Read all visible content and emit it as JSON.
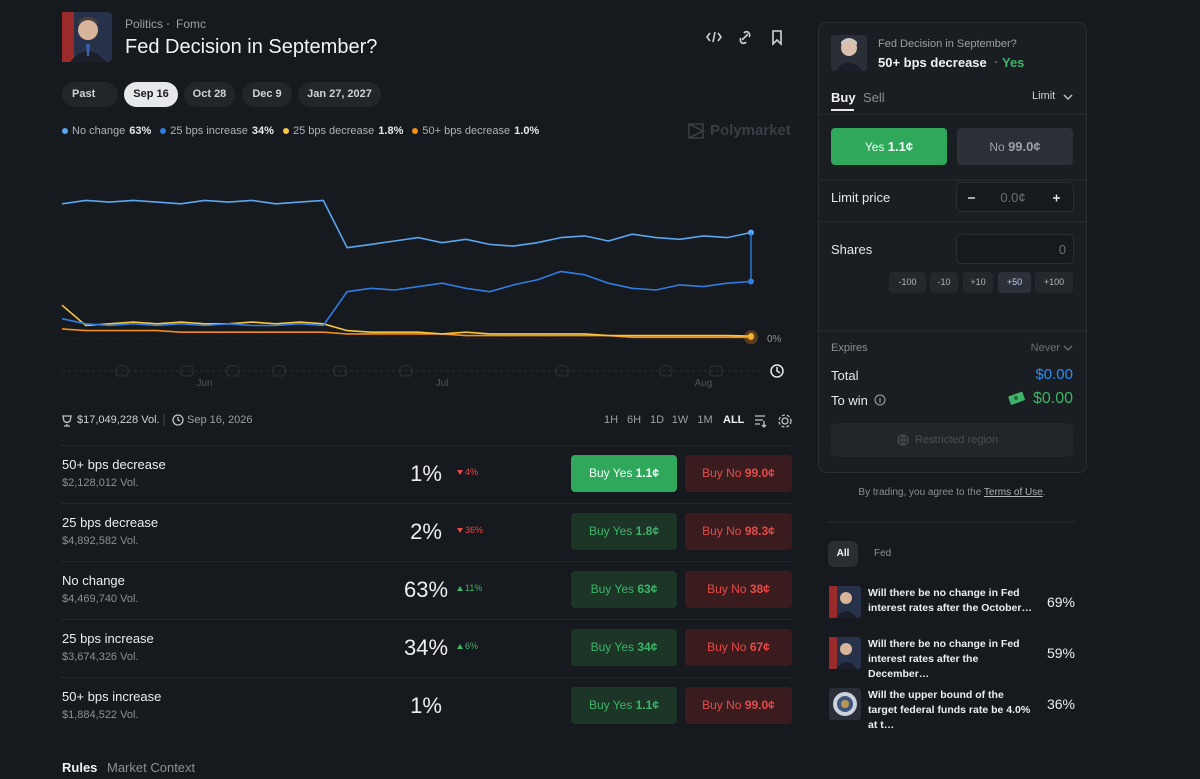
{
  "header": {
    "breadcrumb": [
      "Politics",
      "Fomc"
    ],
    "title": "Fed Decision in September?"
  },
  "date_tabs": [
    "Past",
    "Sep 16",
    "Oct 28",
    "Dec 9",
    "Jan 27, 2027"
  ],
  "brand": "Polymarket",
  "chart_data": {
    "type": "line",
    "categories": [
      null,
      null,
      null,
      null,
      null,
      null,
      "Jun",
      null,
      null,
      null,
      null,
      null,
      null,
      null,
      null,
      null,
      "Jul",
      null,
      null,
      null,
      null,
      null,
      null,
      null,
      null,
      null,
      null,
      "Aug",
      null,
      null
    ],
    "series": [
      {
        "name": "No change",
        "label": "63%",
        "color": "#5aa6f0",
        "values": [
          80,
          82,
          81,
          82,
          81,
          80,
          82,
          81,
          82,
          80,
          81,
          82,
          54,
          56,
          58,
          60,
          57,
          59,
          56,
          55,
          57,
          60,
          61,
          58,
          62,
          60,
          59,
          61,
          60,
          63
        ]
      },
      {
        "name": "25 bps increase",
        "label": "34%",
        "color": "#2f7de1",
        "values": [
          12,
          9,
          8,
          9,
          8,
          9,
          8,
          9,
          8,
          8,
          9,
          8,
          28,
          30,
          29,
          31,
          33,
          30,
          28,
          32,
          35,
          40,
          38,
          33,
          30,
          29,
          32,
          31,
          33,
          34
        ]
      },
      {
        "name": "25 bps decrease",
        "label": "1.8%",
        "color": "#f5c542",
        "values": [
          20,
          8,
          9,
          10,
          9,
          10,
          9,
          9,
          10,
          9,
          10,
          9,
          5,
          4,
          4,
          4,
          3,
          4,
          3,
          3,
          3,
          3,
          3,
          2,
          2,
          2,
          2,
          2,
          2,
          1.8
        ]
      },
      {
        "name": "50+ bps decrease",
        "label": "1.0%",
        "color": "#f28c1b",
        "values": [
          6,
          5,
          5,
          5,
          5,
          4,
          4,
          4,
          4,
          4,
          4,
          4,
          3,
          3,
          3,
          3,
          3,
          2,
          2,
          2,
          2,
          2,
          2,
          2,
          1,
          1,
          1,
          1,
          1,
          1.0
        ]
      }
    ],
    "ylim": [
      0,
      100
    ],
    "yticks": [
      {
        "value": 0,
        "label": "0%"
      }
    ]
  },
  "stats": {
    "volume": "$17,049,228 Vol.",
    "date": "Sep 16, 2026"
  },
  "time_ranges": [
    "1H",
    "6H",
    "1D",
    "1W",
    "1M",
    "ALL"
  ],
  "labels": {
    "buy_yes": "Buy Yes",
    "buy_no": "Buy No"
  },
  "outcomes": [
    {
      "name": "50+ bps decrease",
      "volume": "$2,128,012 Vol.",
      "chance": "1%",
      "change": "4%",
      "direction": "down",
      "yes_price": "1.1¢",
      "no_price": "99.0¢"
    },
    {
      "name": "25 bps decrease",
      "volume": "$4,892,582 Vol.",
      "chance": "2%",
      "change": "36%",
      "direction": "down",
      "yes_price": "1.8¢",
      "no_price": "98.3¢"
    },
    {
      "name": "No change",
      "volume": "$4,469,740 Vol.",
      "chance": "63%",
      "change": "11%",
      "direction": "up",
      "yes_price": "63¢",
      "no_price": "38¢"
    },
    {
      "name": "25 bps increase",
      "volume": "$3,674,326 Vol.",
      "chance": "34%",
      "change": "6%",
      "direction": "up",
      "yes_price": "34¢",
      "no_price": "67¢"
    },
    {
      "name": "50+ bps increase",
      "volume": "$1,884,522 Vol.",
      "chance": "1%",
      "yes_price": "1.1¢",
      "no_price": "99.0¢"
    }
  ],
  "bottom_tabs": [
    "Rules",
    "Market Context"
  ],
  "trade_panel": {
    "market": "Fed Decision in September?",
    "outcome": "50+ bps decrease",
    "side": "Yes",
    "tabs": [
      "Buy",
      "Sell"
    ],
    "order_type": "Limit",
    "yes_button": {
      "label": "Yes",
      "price": "1.1¢"
    },
    "no_button": {
      "label": "No",
      "price": "99.0¢"
    },
    "limit_price_label": "Limit price",
    "limit_price": "0.0¢",
    "shares_label": "Shares",
    "shares": "0",
    "share_steps": [
      "-100",
      "-10",
      "+10",
      "+50",
      "+100"
    ],
    "expires_label": "Expires",
    "expires": "Never",
    "total_label": "Total",
    "total": "$0.00",
    "to_win_label": "To win",
    "to_win": "$0.00",
    "restricted": "Restricted region"
  },
  "terms": {
    "text": "By trading, you agree to the",
    "link": "Terms of Use",
    "end": "."
  },
  "related_tabs": [
    "All",
    "Fed"
  ],
  "related": [
    {
      "title": "Will there be no change in Fed interest rates after the October…",
      "chance": "69%"
    },
    {
      "title": "Will there be no change in Fed interest rates after the December…",
      "chance": "59%"
    },
    {
      "title": "Will the upper bound of the target federal funds rate be 4.0% at t…",
      "chance": "36%"
    }
  ]
}
